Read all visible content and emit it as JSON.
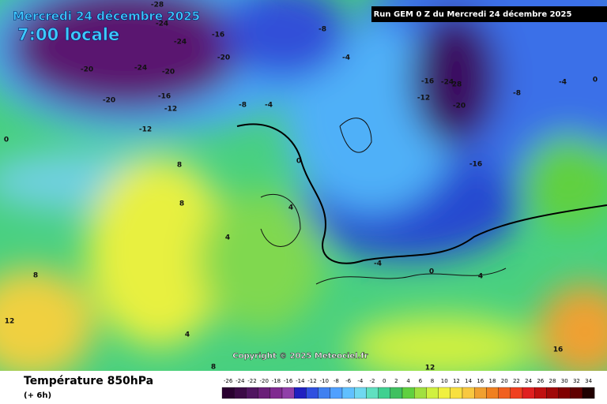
{
  "header": {
    "date": "Mercredi 24 décembre 2025",
    "time": "7:00 locale",
    "run": "Run GEM 0 Z du Mercredi 24 décembre 2025"
  },
  "copyright": "Copyright © 2025 Meteociel.fr",
  "footer": {
    "title": "Température 850hPa",
    "subtitle": "(+ 6h)"
  },
  "contour_labels": [
    -28,
    -24,
    -24,
    -20,
    -24,
    -20,
    -20,
    -16,
    -12,
    -12,
    -20,
    -16,
    -8,
    -4,
    -8,
    -4,
    -16,
    -24,
    28,
    -20,
    -16,
    -12,
    -8,
    -4,
    0,
    0,
    0,
    4,
    4,
    8,
    8,
    8,
    12,
    12,
    16,
    4,
    0,
    -4,
    4,
    8
  ],
  "scale": {
    "labels": [
      -26,
      -24,
      -22,
      -20,
      -18,
      -16,
      -14,
      -12,
      -10,
      -8,
      -6,
      -4,
      -2,
      0,
      2,
      4,
      6,
      8,
      10,
      12,
      14,
      16,
      18,
      20,
      22,
      24,
      26,
      28,
      30,
      32,
      34
    ],
    "colors": [
      "#2a0030",
      "#3c0a46",
      "#501560",
      "#6a1f78",
      "#802a90",
      "#9040a8",
      "#2020c0",
      "#3050e0",
      "#4080f0",
      "#50a0ff",
      "#60c0ff",
      "#70d8f0",
      "#60e0c0",
      "#40d090",
      "#40c060",
      "#60d040",
      "#a0e040",
      "#d0f040",
      "#f0f040",
      "#f8e040",
      "#f8c840",
      "#f0a030",
      "#f08020",
      "#f06020",
      "#f04020",
      "#e02020",
      "#c01010",
      "#a00808",
      "#800000",
      "#600000",
      "#200000"
    ]
  }
}
